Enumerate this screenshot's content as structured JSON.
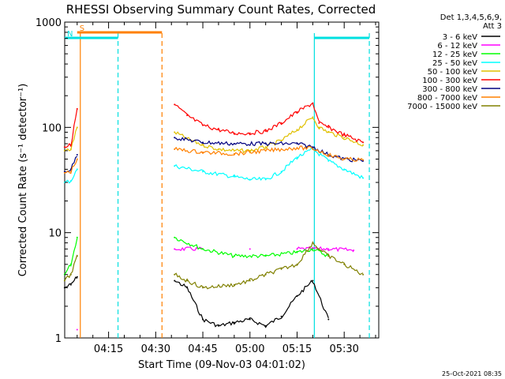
{
  "chart_data": {
    "type": "line",
    "title": "RHESSI Observing Summary Count Rates, Corrected",
    "xlabel": "Start Time (09-Nov-03 04:01:02)",
    "ylabel": "Corrected Count Rate (s⁻¹ detector⁻¹)",
    "ylog": true,
    "ylim": [
      1,
      1000
    ],
    "xlim": [
      "04:01:02",
      "05:41:00"
    ],
    "x_ticks": [
      "04:15",
      "04:30",
      "04:45",
      "05:00",
      "05:15",
      "05:30"
    ],
    "y_ticks": [
      "1",
      "10",
      "100",
      "1000"
    ],
    "legend_header": [
      "Det 1,3,4,5,6,9,",
      "Att 3"
    ],
    "legend_position": "right",
    "timestamp": "25-Oct-2021 08:35",
    "flags": [
      {
        "label": "S",
        "color": "#ff8000",
        "start": "04:05:00",
        "end": "04:32:00",
        "style": "solid"
      },
      {
        "label": "N",
        "color": "#00e0e0",
        "start": "04:01:02",
        "end": "04:18:00",
        "style": "solid"
      },
      {
        "label": "",
        "color": "#00e0e0",
        "start": "05:20:30",
        "end": "05:38:00",
        "style": "solid"
      }
    ],
    "vlines": [
      {
        "time": "04:06:00",
        "color": "#ff8000",
        "style": "solid"
      },
      {
        "time": "04:18:00",
        "color": "#00e0e0",
        "style": "dashed"
      },
      {
        "time": "04:32:00",
        "color": "#ff8000",
        "style": "dashed"
      },
      {
        "time": "05:20:30",
        "color": "#00e0e0",
        "style": "solid"
      },
      {
        "time": "05:38:00",
        "color": "#00e0e0",
        "style": "dashed"
      }
    ],
    "series": [
      {
        "name": "3 - 6 keV",
        "color": "#000000",
        "x": [
          "04:01",
          "04:03",
          "04:05",
          "04:36",
          "04:40",
          "04:45",
          "04:50",
          "04:55",
          "05:00",
          "05:05",
          "05:10",
          "05:15",
          "05:20",
          "05:25"
        ],
        "y": [
          3.0,
          3.2,
          3.8,
          3.5,
          3.0,
          1.5,
          1.3,
          1.4,
          1.5,
          1.3,
          1.6,
          2.5,
          3.5,
          1.5
        ]
      },
      {
        "name": "6 - 12 keV",
        "color": "#ff00ff",
        "x": [
          "04:05",
          "04:36",
          "04:45",
          "05:00",
          "05:15",
          "05:25",
          "05:33"
        ],
        "y": [
          1.2,
          7.0,
          7.0,
          7.0,
          7.0,
          7.0,
          6.8
        ]
      },
      {
        "name": "12 - 25 keV",
        "color": "#00ff00",
        "x": [
          "04:01",
          "04:03",
          "04:05",
          "04:36",
          "04:45",
          "04:55",
          "05:05",
          "05:15",
          "05:20",
          "05:25"
        ],
        "y": [
          4.0,
          5.0,
          9.0,
          9.0,
          7.0,
          6.0,
          6.0,
          6.5,
          7.0,
          6.0
        ]
      },
      {
        "name": "25 - 50 keV",
        "color": "#00ffff",
        "x": [
          "04:01",
          "04:03",
          "04:05",
          "04:36",
          "04:45",
          "04:55",
          "05:00",
          "05:05",
          "05:10",
          "05:15",
          "05:20",
          "05:25",
          "05:30",
          "05:36"
        ],
        "y": [
          30,
          31,
          40,
          43,
          38,
          34,
          32,
          32,
          38,
          52,
          62,
          48,
          40,
          33
        ]
      },
      {
        "name": "50 - 100 keV",
        "color": "#e0c000",
        "x": [
          "04:01",
          "04:03",
          "04:05",
          "04:36",
          "04:40",
          "04:45",
          "04:50",
          "04:55",
          "05:00",
          "05:05",
          "05:10",
          "05:15",
          "05:20",
          "05:22",
          "05:25",
          "05:30",
          "05:36"
        ],
        "y": [
          60,
          62,
          100,
          90,
          78,
          68,
          62,
          60,
          60,
          65,
          75,
          95,
          125,
          100,
          90,
          80,
          68
        ]
      },
      {
        "name": "100 - 300 keV",
        "color": "#ff0000",
        "x": [
          "04:01",
          "04:03",
          "04:05",
          "04:36",
          "04:40",
          "04:45",
          "04:50",
          "04:55",
          "05:00",
          "05:05",
          "05:10",
          "05:15",
          "05:20",
          "05:22",
          "05:25",
          "05:30",
          "05:36"
        ],
        "y": [
          65,
          68,
          150,
          165,
          130,
          105,
          95,
          88,
          88,
          92,
          110,
          140,
          170,
          110,
          100,
          85,
          72
        ]
      },
      {
        "name": "300 - 800 keV",
        "color": "#000080",
        "x": [
          "04:01",
          "04:03",
          "04:05",
          "04:36",
          "04:45",
          "04:55",
          "05:05",
          "05:15",
          "05:20",
          "05:25",
          "05:30",
          "05:36"
        ],
        "y": [
          38,
          40,
          55,
          80,
          72,
          70,
          70,
          70,
          65,
          55,
          50,
          48
        ]
      },
      {
        "name": "800 - 7000 keV",
        "color": "#ff8000",
        "x": [
          "04:01",
          "04:03",
          "04:05",
          "04:36",
          "04:45",
          "04:55",
          "05:05",
          "05:15",
          "05:20",
          "05:25",
          "05:30",
          "05:36"
        ],
        "y": [
          37,
          38,
          50,
          62,
          58,
          56,
          60,
          64,
          63,
          55,
          50,
          49
        ]
      },
      {
        "name": "7000 - 15000 keV",
        "color": "#808000",
        "x": [
          "04:01",
          "04:03",
          "04:05",
          "04:36",
          "04:40",
          "04:45",
          "04:55",
          "05:00",
          "05:05",
          "05:10",
          "05:15",
          "05:20",
          "05:22",
          "05:25",
          "05:30",
          "05:36"
        ],
        "y": [
          3.5,
          4.0,
          6.0,
          4.0,
          3.5,
          3.0,
          3.2,
          3.5,
          4.0,
          4.5,
          5.0,
          8.0,
          7.0,
          6.0,
          5.0,
          4.0
        ]
      }
    ]
  }
}
